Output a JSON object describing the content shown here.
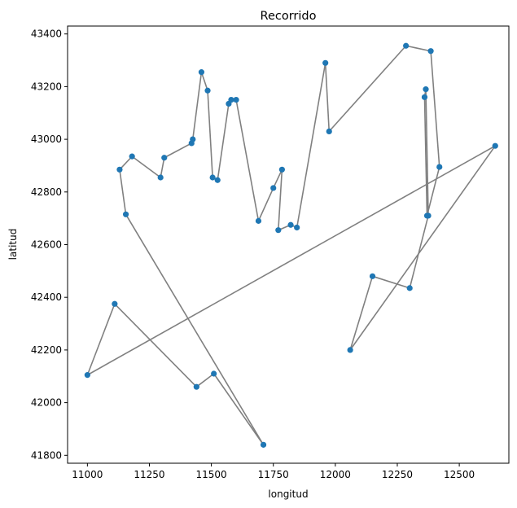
{
  "chart_data": {
    "type": "scatter",
    "title": "Recorrido",
    "xlabel": "longitud",
    "ylabel": "latitud",
    "xlim": [
      10920,
      12700
    ],
    "ylim": [
      41770,
      43430
    ],
    "xticks": [
      11000,
      11250,
      11500,
      11750,
      12000,
      12250,
      12500
    ],
    "yticks": [
      41800,
      42000,
      42200,
      42400,
      42600,
      42800,
      43000,
      43200,
      43400
    ],
    "grid": false,
    "point_color": "#1f77b4",
    "line_color": "#808080",
    "x": [
      11000,
      11110,
      11440,
      11510,
      11710,
      11155,
      11130,
      11180,
      11295,
      11310,
      11420,
      11425,
      11460,
      11485,
      11505,
      11525,
      11570,
      11580,
      11600,
      11690,
      11750,
      11785,
      11770,
      11820,
      11845,
      11960,
      11975,
      12285,
      12385,
      12420,
      12370,
      12360,
      12365,
      12375,
      12300,
      12150,
      12060,
      12645
    ],
    "y": [
      42105,
      42375,
      42060,
      42110,
      41840,
      42715,
      42885,
      42935,
      42855,
      42930,
      42985,
      43000,
      43255,
      43185,
      42855,
      42845,
      43135,
      43150,
      43150,
      42690,
      42815,
      42885,
      42655,
      42675,
      42665,
      43290,
      43030,
      43355,
      43335,
      42895,
      42710,
      43160,
      43190,
      42710,
      42435,
      42480,
      42200,
      42975
    ]
  }
}
